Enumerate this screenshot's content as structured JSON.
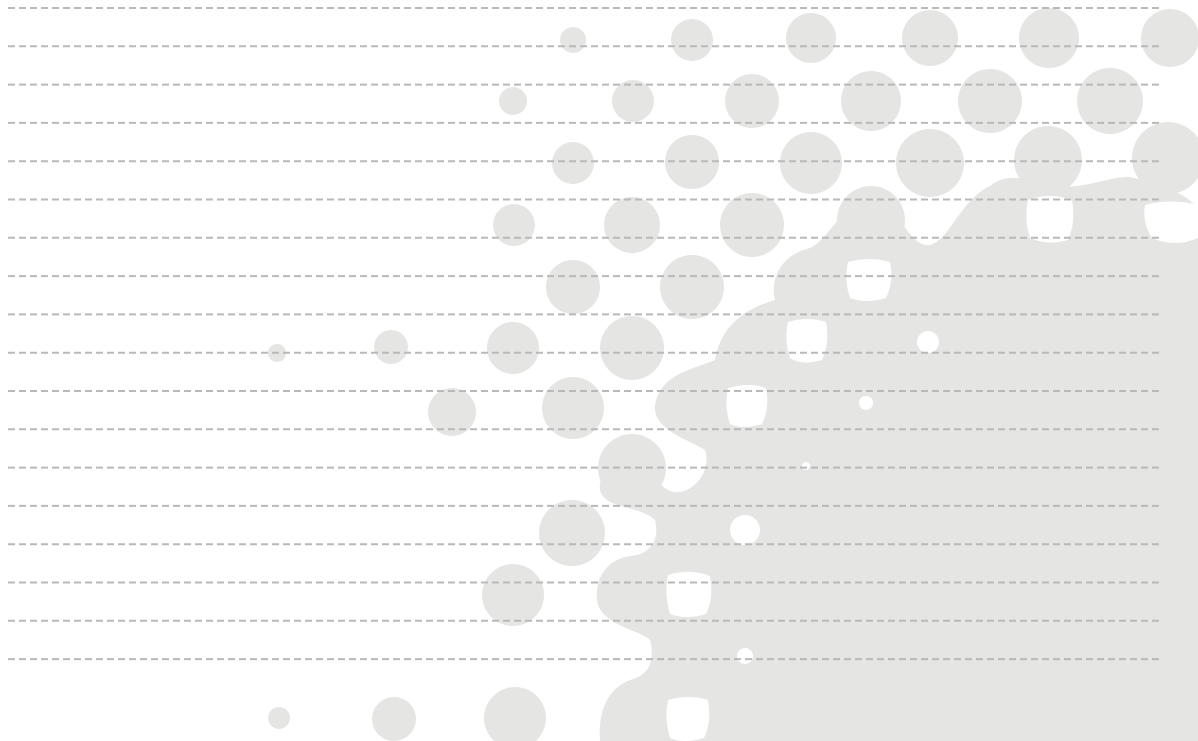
{
  "canvas": {
    "background": "#ffffff",
    "dot_color": "#e5e5e4",
    "line_color": "#b9b9b9"
  },
  "pattern": {
    "kind": "halftone-dots-with-dashed-ruled-lines",
    "icon": "halftone-pattern-graphic"
  }
}
